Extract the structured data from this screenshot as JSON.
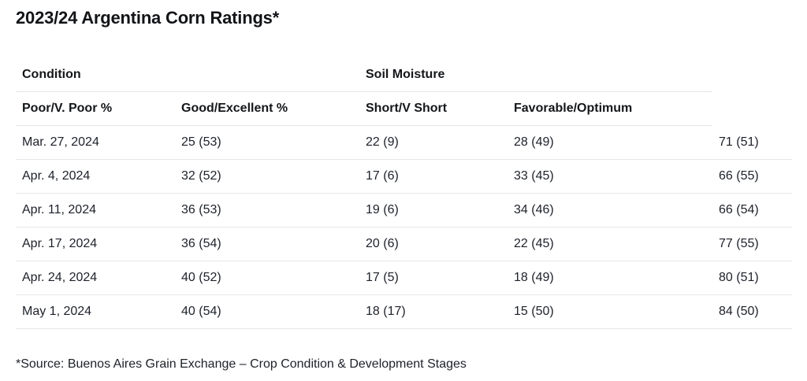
{
  "title": "2023/24 Argentina Corn Ratings*",
  "footnote": "*Source: Buenos Aires Grain Exchange – Crop Condition & Development Stages",
  "colors": {
    "background": "#ffffff",
    "text": "#1d2129",
    "border": "#e5e6e9"
  },
  "chart_data": {
    "type": "table",
    "title": "2023/24 Argentina Corn Ratings*",
    "group_headers": [
      "Condition",
      "",
      "Soil Moisture",
      "",
      ""
    ],
    "columns": [
      "Poor/V. Poor %",
      "Good/Excellent %",
      "Short/V Short",
      "Favorable/Optimum",
      ""
    ],
    "rows": [
      [
        "Mar. 27, 2024",
        "25 (53)",
        "22 (9)",
        "28 (49)",
        "71 (51)"
      ],
      [
        "Apr. 4, 2024",
        "32 (52)",
        "17 (6)",
        "33 (45)",
        "66 (55)"
      ],
      [
        "Apr. 11, 2024",
        "36 (53)",
        "19 (6)",
        "34 (46)",
        "66 (54)"
      ],
      [
        "Apr. 17, 2024",
        "36 (54)",
        "20 (6)",
        "22 (45)",
        "77 (55)"
      ],
      [
        "Apr. 24, 2024",
        "40 (52)",
        "17 (5)",
        "18 (49)",
        "80 (51)"
      ],
      [
        "May 1, 2024",
        "40 (54)",
        "18 (17)",
        "15 (50)",
        "84 (50)"
      ]
    ],
    "source_note": "*Source: Buenos Aires Grain Exchange – Crop Condition & Development Stages"
  }
}
